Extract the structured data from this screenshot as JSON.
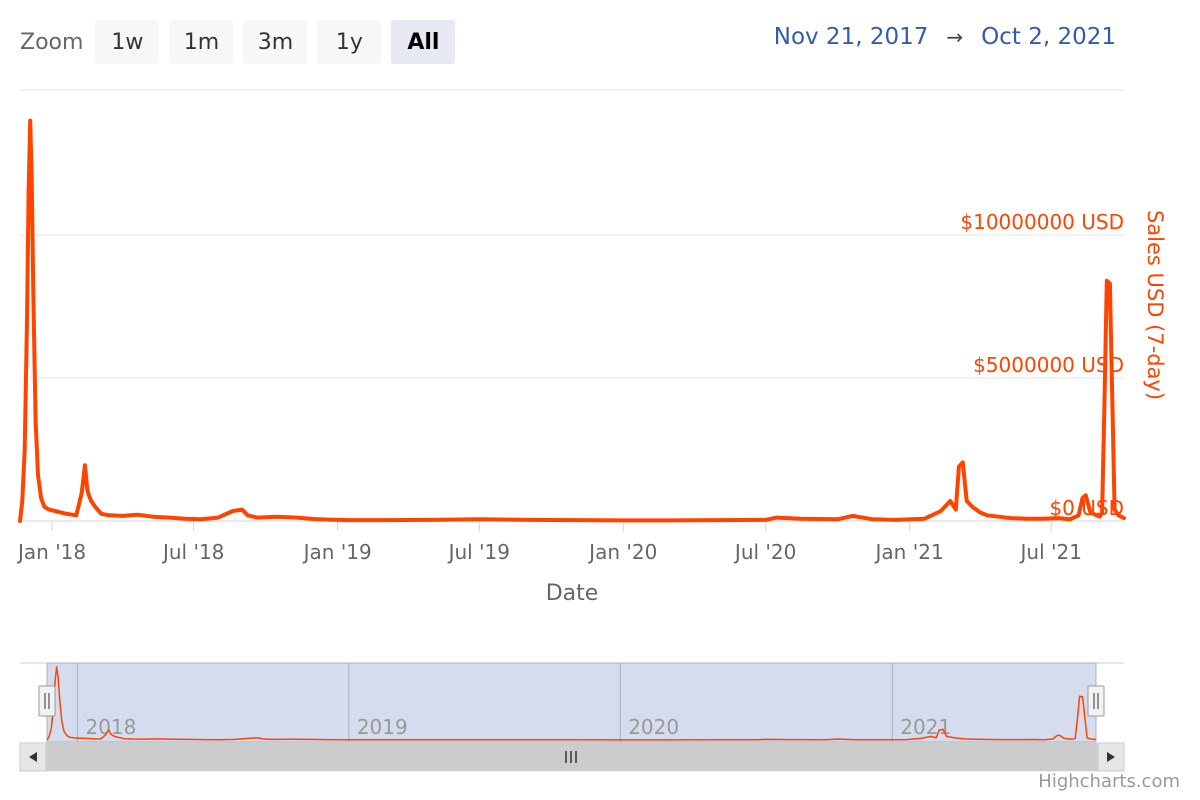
{
  "zoom": {
    "label": "Zoom",
    "buttons": [
      {
        "label": "1w",
        "active": false
      },
      {
        "label": "1m",
        "active": false
      },
      {
        "label": "3m",
        "active": false
      },
      {
        "label": "1y",
        "active": false
      },
      {
        "label": "All",
        "active": true
      }
    ]
  },
  "range": {
    "from": "Nov 21, 2017",
    "arrow": "→",
    "to": "Oct 2, 2021"
  },
  "credits": "Highcharts.com",
  "chart_data": {
    "type": "line",
    "title": "",
    "xlabel": "Date",
    "ylabel": "Sales USD (7-day)",
    "ylim": [
      0,
      10000000
    ],
    "y_ticks": [
      {
        "value": 0,
        "label": "$0 USD"
      },
      {
        "value": 5000000,
        "label": "$5000000 USD"
      },
      {
        "value": 10000000,
        "label": "$10000000 USD"
      }
    ],
    "x_ticks": [
      {
        "date": "2018-01-01",
        "label": "Jan '18"
      },
      {
        "date": "2018-07-01",
        "label": "Jul '18"
      },
      {
        "date": "2019-01-01",
        "label": "Jan '19"
      },
      {
        "date": "2019-07-01",
        "label": "Jul '19"
      },
      {
        "date": "2020-01-01",
        "label": "Jan '20"
      },
      {
        "date": "2020-07-01",
        "label": "Jul '20"
      },
      {
        "date": "2021-01-01",
        "label": "Jan '21"
      },
      {
        "date": "2021-07-01",
        "label": "Jul '21"
      }
    ],
    "x_range": [
      "2017-11-21",
      "2021-10-02"
    ],
    "grid": true,
    "line_color": "#ff4400",
    "navigator": {
      "year_labels": [
        {
          "date": "2018-01-01",
          "label": "2018"
        },
        {
          "date": "2019-01-01",
          "label": "2019"
        },
        {
          "date": "2020-01-01",
          "label": "2020"
        },
        {
          "date": "2021-01-01",
          "label": "2021"
        }
      ]
    },
    "series": [
      {
        "x": [
          "2017-11-21",
          "2017-11-24",
          "2017-11-27",
          "2017-11-30",
          "2017-12-02",
          "2017-12-04",
          "2017-12-06",
          "2017-12-08",
          "2017-12-11",
          "2017-12-14",
          "2017-12-18",
          "2017-12-22",
          "2017-12-28",
          "2018-01-05",
          "2018-01-12",
          "2018-01-20",
          "2018-02-01",
          "2018-02-08",
          "2018-02-12",
          "2018-02-15",
          "2018-02-17",
          "2018-02-20",
          "2018-02-25",
          "2018-03-05",
          "2018-03-15",
          "2018-04-01",
          "2018-04-20",
          "2018-05-10",
          "2018-06-01",
          "2018-06-20",
          "2018-07-10",
          "2018-08-01",
          "2018-08-20",
          "2018-09-01",
          "2018-09-08",
          "2018-09-20",
          "2018-10-15",
          "2018-11-10",
          "2018-12-01",
          "2018-12-20",
          "2019-01-15",
          "2019-03-01",
          "2019-05-01",
          "2019-07-01",
          "2019-09-01",
          "2019-11-01",
          "2020-01-01",
          "2020-03-01",
          "2020-05-01",
          "2020-07-01",
          "2020-07-15",
          "2020-08-15",
          "2020-10-01",
          "2020-10-20",
          "2020-11-15",
          "2020-12-15",
          "2021-01-20",
          "2021-02-10",
          "2021-02-22",
          "2021-03-01",
          "2021-03-05",
          "2021-03-10",
          "2021-03-15",
          "2021-03-22",
          "2021-04-01",
          "2021-04-10",
          "2021-04-25",
          "2021-05-10",
          "2021-06-01",
          "2021-06-20",
          "2021-07-10",
          "2021-07-25",
          "2021-08-05",
          "2021-08-10",
          "2021-08-14",
          "2021-08-20",
          "2021-08-28",
          "2021-09-01",
          "2021-09-04",
          "2021-09-07",
          "2021-09-10",
          "2021-09-14",
          "2021-09-20",
          "2021-09-25",
          "2021-10-02"
        ],
        "y": [
          0,
          700000,
          2500000,
          7000000,
          11500000,
          14000000,
          12000000,
          8000000,
          3500000,
          1600000,
          800000,
          500000,
          400000,
          350000,
          300000,
          250000,
          200000,
          1000000,
          1950000,
          1100000,
          900000,
          700000,
          500000,
          250000,
          200000,
          180000,
          220000,
          150000,
          120000,
          80000,
          60000,
          120000,
          350000,
          400000,
          200000,
          120000,
          150000,
          120000,
          70000,
          50000,
          30000,
          30000,
          40000,
          60000,
          40000,
          30000,
          20000,
          20000,
          30000,
          40000,
          120000,
          80000,
          60000,
          180000,
          60000,
          40000,
          80000,
          350000,
          700000,
          400000,
          1900000,
          2050000,
          700000,
          500000,
          300000,
          200000,
          150000,
          100000,
          80000,
          80000,
          100000,
          60000,
          200000,
          800000,
          900000,
          300000,
          200000,
          150000,
          300000,
          4000000,
          8400000,
          8300000,
          400000,
          200000,
          100000
        ]
      }
    ]
  }
}
